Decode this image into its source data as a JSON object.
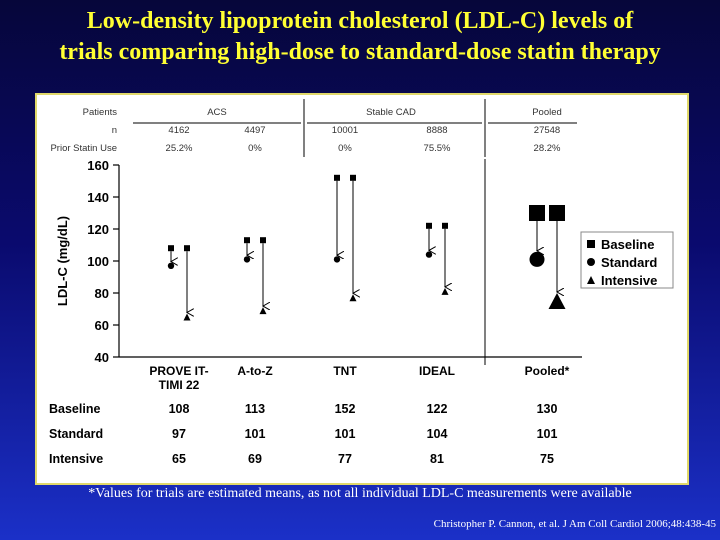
{
  "title_line1": "Low-density lipoprotein cholesterol (LDL-C) levels of",
  "title_line2": "trials comparing high-dose to standard-dose statin therapy",
  "footnote": "*Values for trials are estimated means, as not all individual LDL-C measurements were available",
  "citation": "Christopher P. Cannon, et al. J Am Coll Cardiol 2006;48:438-45",
  "header_table": {
    "row_labels": [
      "Patients",
      "n",
      "Prior Statin Use"
    ],
    "groups": [
      {
        "label": "ACS",
        "span": [
          0,
          1
        ]
      },
      {
        "label": "Stable CAD",
        "span": [
          2,
          3
        ]
      },
      {
        "label": "Pooled",
        "span": [
          4,
          4
        ]
      }
    ],
    "n": [
      "4162",
      "4497",
      "10001",
      "8888",
      "27548"
    ],
    "prior_statin_use": [
      "25.2%",
      "0%",
      "0%",
      "75.5%",
      "28.2%"
    ]
  },
  "bottom_table": {
    "row_labels": [
      "Baseline",
      "Standard",
      "Intensive"
    ],
    "baseline": [
      "108",
      "113",
      "152",
      "122",
      "130"
    ],
    "standard": [
      "97",
      "101",
      "101",
      "104",
      "101"
    ],
    "intensive": [
      "65",
      "69",
      "77",
      "81",
      "75"
    ]
  },
  "colors": {
    "marker": "#000000",
    "title": "#ffff33",
    "panel_border": "#e0d86a"
  },
  "chart_data": {
    "type": "scatter",
    "ylabel": "LDL-C (mg/dL)",
    "ylim": [
      40,
      160
    ],
    "yticks": [
      40,
      60,
      80,
      100,
      120,
      140,
      160
    ],
    "categories": [
      "PROVE IT-TIMI 22",
      "A-to-Z",
      "TNT",
      "IDEAL",
      "Pooled*"
    ],
    "category_labels": [
      [
        "PROVE IT-",
        "TIMI 22"
      ],
      [
        "A-to-Z"
      ],
      [
        "TNT"
      ],
      [
        "IDEAL"
      ],
      [
        "Pooled*"
      ]
    ],
    "series": [
      {
        "name": "Baseline",
        "marker": "square",
        "values": [
          108,
          113,
          152,
          122,
          130
        ]
      },
      {
        "name": "Standard",
        "marker": "circle",
        "values": [
          97,
          101,
          101,
          104,
          101
        ]
      },
      {
        "name": "Intensive",
        "marker": "triangle",
        "values": [
          65,
          69,
          77,
          81,
          75
        ]
      }
    ],
    "legend": {
      "placement": "right",
      "entries": [
        "Baseline",
        "Standard",
        "Intensive"
      ]
    }
  }
}
